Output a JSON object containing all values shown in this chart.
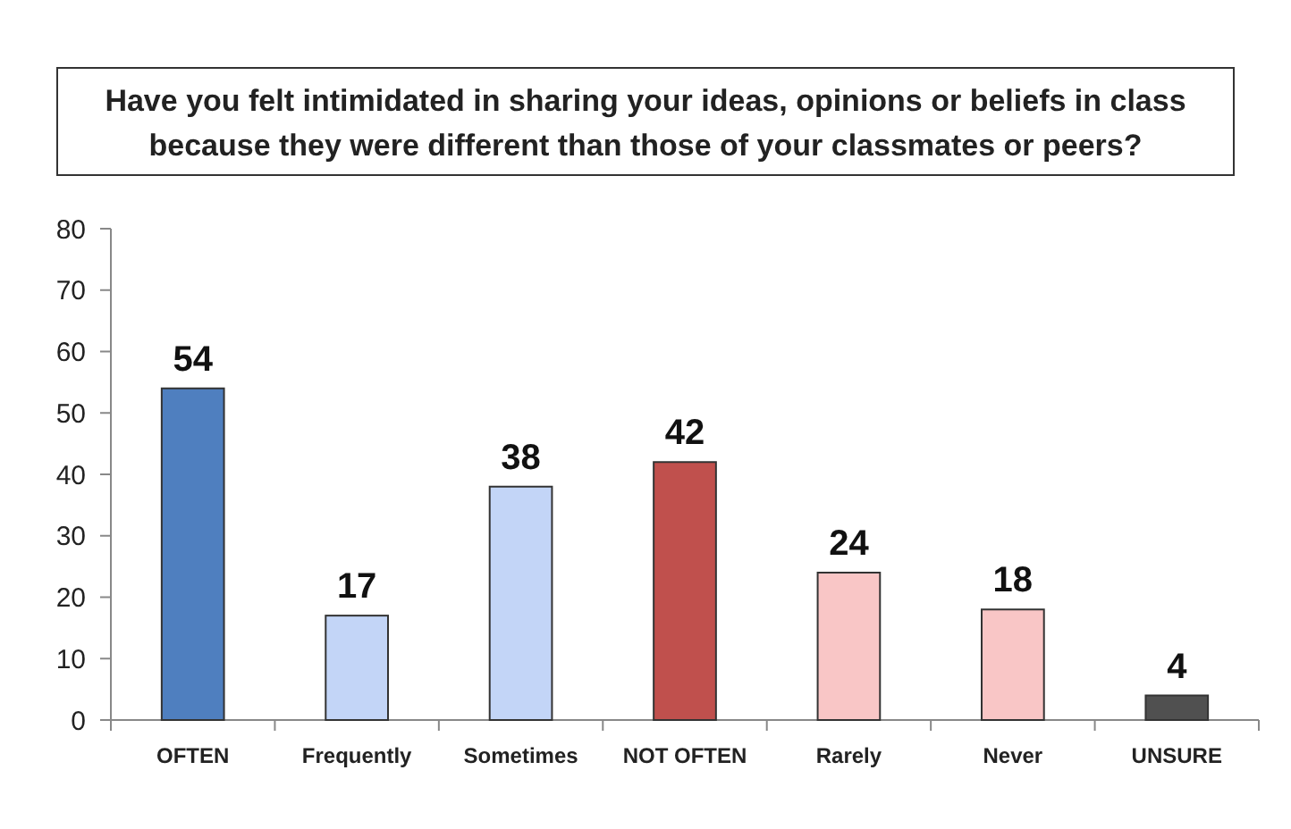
{
  "chart_data": {
    "type": "bar",
    "title": "Have you felt intimidated in sharing your ideas, opinions or beliefs in class because they were different than those of your classmates or peers?",
    "categories": [
      "OFTEN",
      "Frequently",
      "Sometimes",
      "NOT OFTEN",
      "Rarely",
      "Never",
      "UNSURE"
    ],
    "values": [
      54,
      17,
      38,
      42,
      24,
      18,
      4
    ],
    "colors": [
      "#4f7fbf",
      "#c3d5f7",
      "#c3d5f7",
      "#c0504d",
      "#f9c6c6",
      "#f9c6c6",
      "#505050"
    ],
    "ylim": [
      0,
      80
    ],
    "yticks": [
      0,
      10,
      20,
      30,
      40,
      50,
      60,
      70,
      80
    ],
    "grid": false,
    "data_labels": true
  }
}
